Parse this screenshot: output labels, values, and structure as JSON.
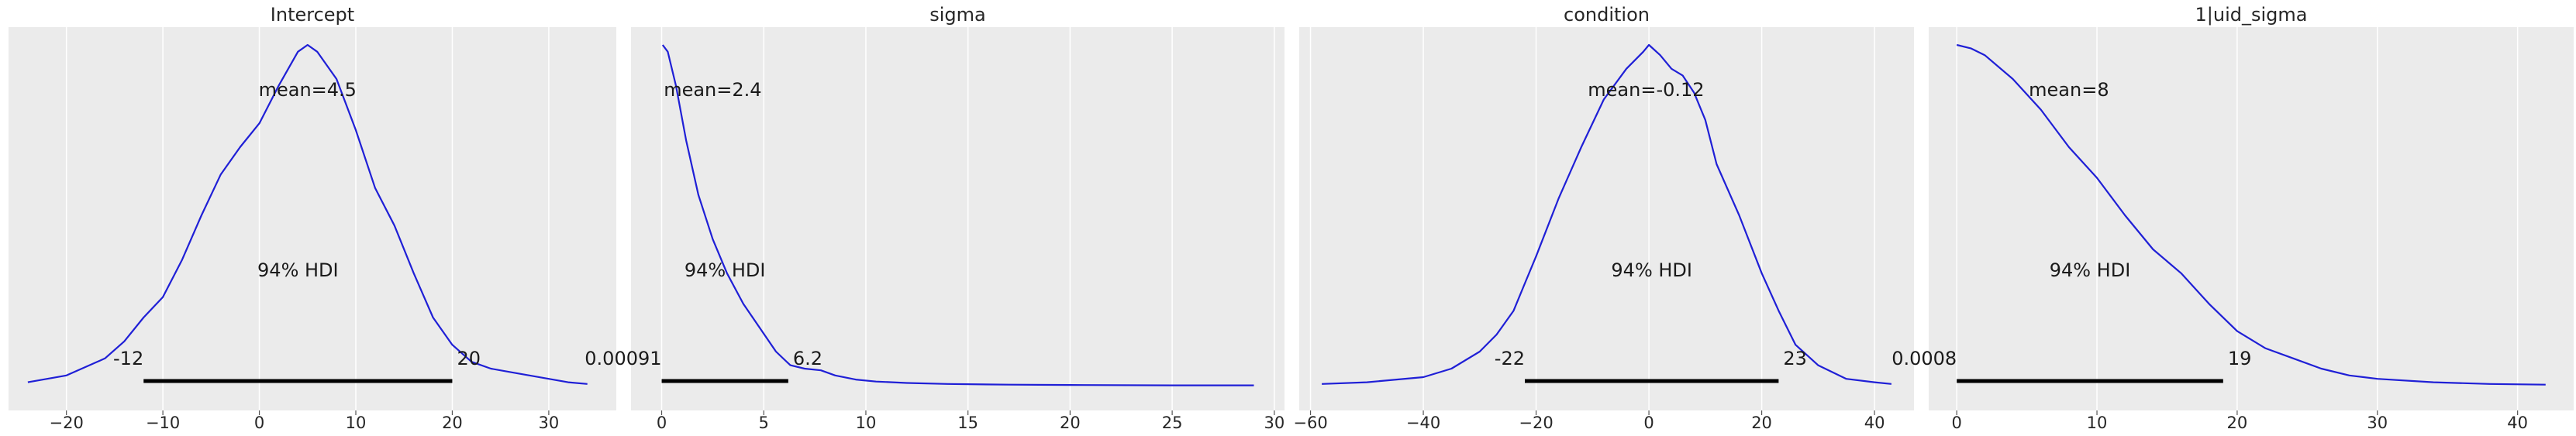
{
  "chart_data": [
    {
      "type": "line",
      "title": "Intercept",
      "xlim": [
        -26,
        37
      ],
      "xticks": [
        -20,
        -10,
        0,
        10,
        20,
        30
      ],
      "xtick_labels": [
        "−20",
        "−10",
        "0",
        "10",
        "20",
        "30"
      ],
      "grid": true,
      "color": "#1f1fd6",
      "mean_label": "mean=4.5",
      "hdi_label": "94% HDI",
      "hdi": [
        -12,
        20
      ],
      "hdi_labels": [
        "-12",
        "20"
      ],
      "density": {
        "x": [
          -24,
          -20,
          -16,
          -14,
          -12,
          -10,
          -8,
          -6,
          -4,
          -2,
          0,
          2,
          4,
          5,
          6,
          8,
          10,
          12,
          14,
          16,
          18,
          20,
          22,
          24,
          26,
          28,
          30,
          32,
          34
        ],
        "y": [
          0.01,
          0.03,
          0.08,
          0.13,
          0.2,
          0.26,
          0.37,
          0.5,
          0.62,
          0.7,
          0.77,
          0.88,
          0.98,
          1.0,
          0.98,
          0.9,
          0.75,
          0.58,
          0.47,
          0.33,
          0.2,
          0.12,
          0.07,
          0.05,
          0.04,
          0.03,
          0.02,
          0.01,
          0.005
        ]
      }
    },
    {
      "type": "line",
      "title": "sigma",
      "xlim": [
        -1.5,
        30.5
      ],
      "xticks": [
        0,
        5,
        10,
        15,
        20,
        25,
        30
      ],
      "xtick_labels": [
        "0",
        "5",
        "10",
        "15",
        "20",
        "25",
        "30"
      ],
      "grid": true,
      "color": "#1f1fd6",
      "mean_label": "mean=2.4",
      "hdi_label": "94% HDI",
      "hdi": [
        0.00091,
        6.2
      ],
      "hdi_labels": [
        "0.00091",
        "6.2"
      ],
      "density": {
        "x": [
          0.05,
          0.3,
          0.7,
          1.2,
          1.8,
          2.5,
          3.2,
          4.0,
          4.8,
          5.6,
          6.3,
          7.0,
          7.8,
          8.5,
          9.5,
          10.5,
          12,
          14,
          17,
          20,
          25,
          29
        ],
        "y": [
          1.0,
          0.98,
          0.88,
          0.72,
          0.56,
          0.43,
          0.33,
          0.24,
          0.17,
          0.1,
          0.06,
          0.05,
          0.045,
          0.03,
          0.018,
          0.012,
          0.008,
          0.005,
          0.003,
          0.002,
          0.001,
          0.001
        ]
      }
    },
    {
      "type": "line",
      "title": "condition",
      "xlim": [
        -62,
        47
      ],
      "xticks": [
        -60,
        -40,
        -20,
        0,
        20,
        40
      ],
      "xtick_labels": [
        "−60",
        "−40",
        "−20",
        "0",
        "20",
        "40"
      ],
      "grid": true,
      "color": "#1f1fd6",
      "mean_label": "mean=-0.12",
      "hdi_label": "94% HDI",
      "hdi": [
        -22,
        23
      ],
      "hdi_labels": [
        "-22",
        "23"
      ],
      "density": {
        "x": [
          -58,
          -50,
          -40,
          -35,
          -30,
          -27,
          -24,
          -22,
          -20,
          -16,
          -12,
          -8,
          -4,
          -1,
          0,
          2,
          4,
          6,
          8,
          10,
          12,
          16,
          20,
          23,
          26,
          30,
          35,
          40,
          43
        ],
        "y": [
          0.005,
          0.01,
          0.025,
          0.05,
          0.1,
          0.15,
          0.22,
          0.3,
          0.38,
          0.55,
          0.7,
          0.84,
          0.93,
          0.98,
          1.0,
          0.97,
          0.93,
          0.91,
          0.86,
          0.78,
          0.65,
          0.5,
          0.33,
          0.22,
          0.12,
          0.06,
          0.02,
          0.01,
          0.005
        ]
      }
    },
    {
      "type": "line",
      "title": "1|uid_sigma",
      "xlim": [
        -2,
        44
      ],
      "xticks": [
        0,
        10,
        20,
        30,
        40
      ],
      "xtick_labels": [
        "0",
        "10",
        "20",
        "30",
        "40"
      ],
      "grid": true,
      "color": "#1f1fd6",
      "mean_label": "mean=8",
      "hdi_label": "94% HDI",
      "hdi": [
        0.0008,
        19
      ],
      "hdi_labels": [
        "0.0008",
        "19"
      ],
      "density": {
        "x": [
          0,
          1,
          2,
          4,
          6,
          8,
          10,
          12,
          14,
          16,
          18,
          20,
          22,
          24,
          26,
          28,
          30,
          34,
          38,
          42
        ],
        "y": [
          1.0,
          0.99,
          0.97,
          0.9,
          0.81,
          0.7,
          0.61,
          0.5,
          0.4,
          0.33,
          0.24,
          0.16,
          0.11,
          0.08,
          0.05,
          0.03,
          0.02,
          0.01,
          0.005,
          0.003
        ]
      }
    }
  ]
}
